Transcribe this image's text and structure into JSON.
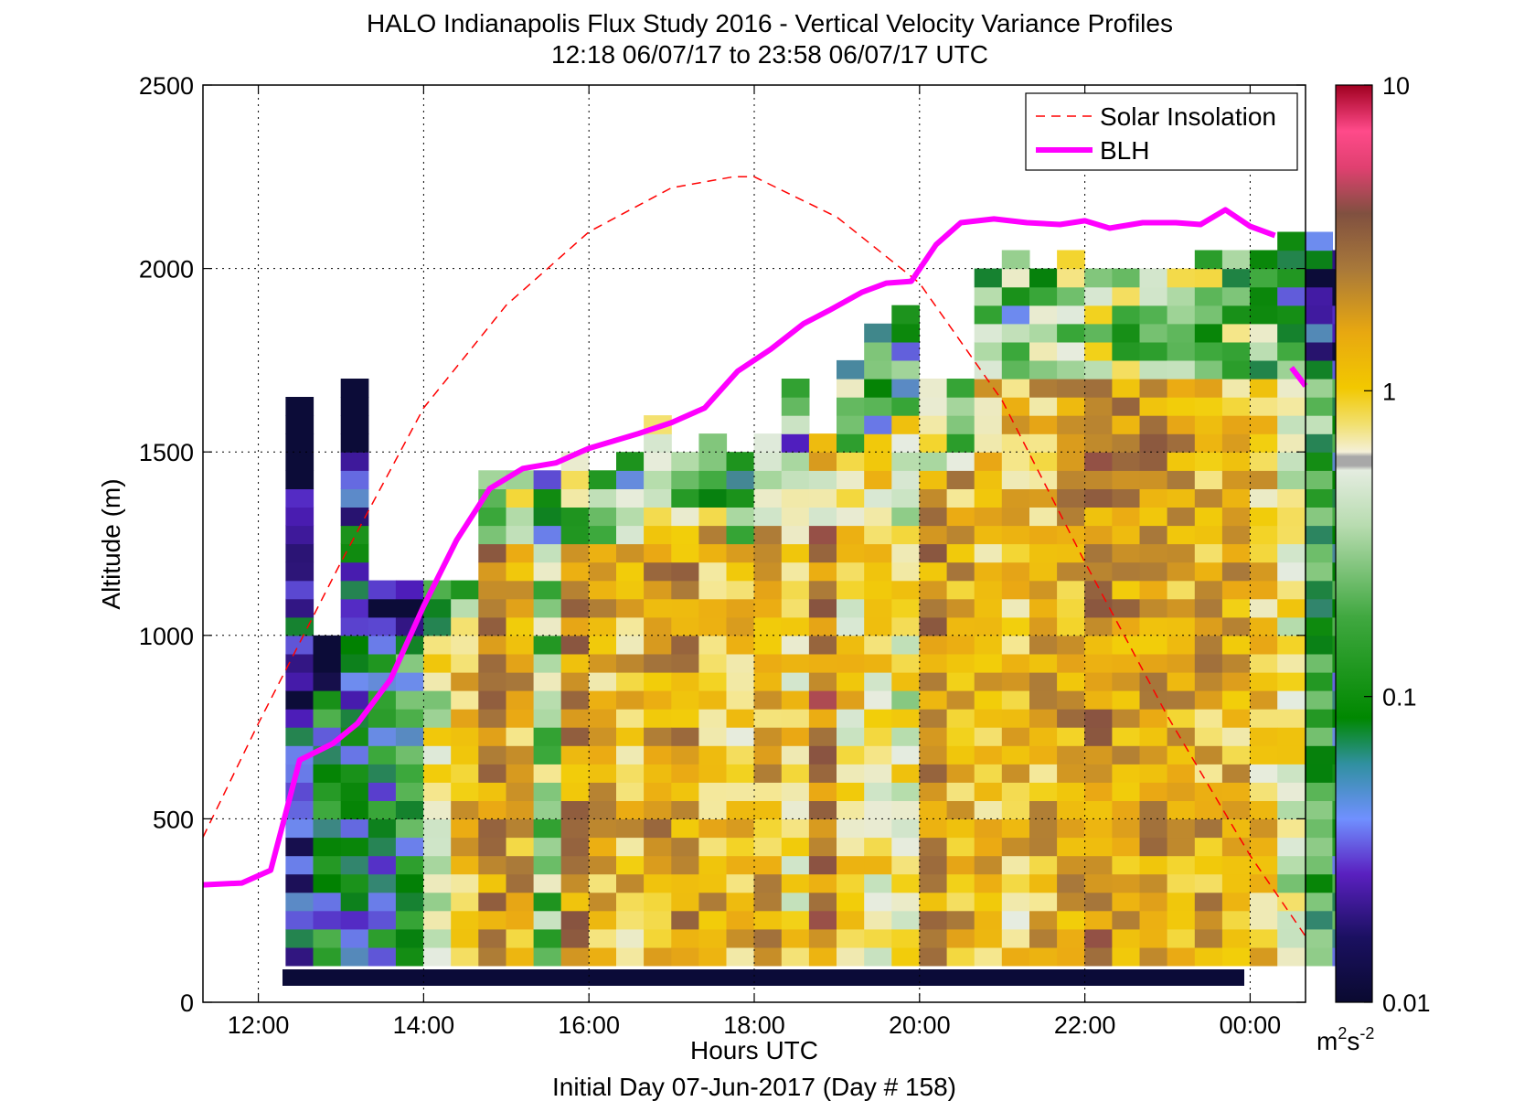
{
  "chart_data": {
    "type": "heatmap",
    "title": "HALO Indianapolis Flux Study 2016 - Vertical Velocity Variance Profiles",
    "subtitle": "12:18 06/07/17 to 23:58 06/07/17  UTC",
    "xlabel": "Hours UTC",
    "footer": "Initial Day 07-Jun-2017 (Day # 158)",
    "ylabel": "Altitude (m)",
    "xlim": [
      11.33,
      24.67
    ],
    "ylim": [
      0,
      2500
    ],
    "x_ticks": [
      12,
      14,
      16,
      18,
      20,
      22,
      24
    ],
    "x_tick_labels": [
      "12:00",
      "14:00",
      "16:00",
      "18:00",
      "20:00",
      "22:00",
      "00:00"
    ],
    "y_ticks": [
      0,
      500,
      1000,
      1500,
      2000,
      2500
    ],
    "y_tick_labels": [
      "0",
      "500",
      "1000",
      "1500",
      "2000",
      "2500"
    ],
    "grid": true,
    "legend_position": "top-right",
    "colorbar": {
      "scale": "log",
      "range": [
        0.01,
        10
      ],
      "tick_values": [
        0.01,
        0.1,
        1,
        10
      ],
      "tick_labels": [
        "0.01",
        "0.1",
        "1",
        "10"
      ],
      "unit_base": "m",
      "unit_sup1": "2",
      "unit_mid": "s",
      "unit_sup2": "-2"
    },
    "cells": {
      "time_start": 12.33,
      "time_step": 0.3333,
      "alt_step": 50,
      "columns": [
        {
          "top": 1650,
          "level": 0.12
        },
        {
          "top": 1000,
          "level": 0.25
        },
        {
          "top": 1700,
          "level": 0.18
        },
        {
          "top": 1150,
          "level": 0.22
        },
        {
          "top": 1150,
          "level": 0.3
        },
        {
          "top": 1150,
          "level": 0.55
        },
        {
          "top": 1150,
          "level": 0.68
        },
        {
          "top": 1450,
          "level": 0.8
        },
        {
          "top": 1450,
          "level": 0.72
        },
        {
          "top": 1450,
          "level": 0.45
        },
        {
          "top": 1500,
          "level": 0.78
        },
        {
          "top": 1450,
          "level": 0.7
        },
        {
          "top": 1500,
          "level": 0.68
        },
        {
          "top": 1600,
          "level": 0.74
        },
        {
          "top": 1500,
          "level": 0.76
        },
        {
          "top": 1550,
          "level": 0.7
        },
        {
          "top": 1500,
          "level": 0.66
        },
        {
          "top": 1550,
          "level": 0.72
        },
        {
          "top": 1700,
          "level": 0.6
        },
        {
          "top": 1550,
          "level": 0.84
        },
        {
          "top": 1750,
          "level": 0.62
        },
        {
          "top": 1850,
          "level": 0.58
        },
        {
          "top": 1900,
          "level": 0.55
        },
        {
          "top": 1700,
          "level": 0.78
        },
        {
          "top": 1700,
          "level": 0.72
        },
        {
          "top": 2000,
          "level": 0.68
        },
        {
          "top": 2050,
          "level": 0.66
        },
        {
          "top": 2000,
          "level": 0.7
        },
        {
          "top": 2050,
          "level": 0.74
        },
        {
          "top": 2000,
          "level": 0.8
        },
        {
          "top": 2000,
          "level": 0.76
        },
        {
          "top": 2000,
          "level": 0.78
        },
        {
          "top": 2000,
          "level": 0.74
        },
        {
          "top": 2050,
          "level": 0.72
        },
        {
          "top": 2050,
          "level": 0.7
        },
        {
          "top": 2050,
          "level": 0.66
        },
        {
          "top": 2100,
          "level": 0.54
        },
        {
          "top": 2100,
          "level": 0.36
        },
        {
          "top": 2050,
          "level": 0.28
        }
      ]
    },
    "series": [
      {
        "name": "Solar Insolation",
        "style": "dashed",
        "color": "#ff0000",
        "x": [
          11.33,
          12,
          13,
          14,
          15,
          16,
          17,
          17.75,
          18,
          19,
          20,
          21,
          22,
          23,
          24,
          24.67
        ],
        "y": [
          450,
          760,
          1200,
          1620,
          1900,
          2100,
          2220,
          2250,
          2250,
          2140,
          1960,
          1640,
          1200,
          780,
          400,
          180
        ]
      },
      {
        "name": "BLH",
        "style": "solid",
        "color": "#ff00ff",
        "x": [
          11.33,
          11.8,
          12.15,
          12.5,
          12.9,
          13.2,
          13.6,
          14,
          14.4,
          14.8,
          15.2,
          15.6,
          16,
          16.6,
          17,
          17.4,
          17.8,
          18.2,
          18.6,
          18.9,
          19.3,
          19.6,
          19.9,
          20.2,
          20.5,
          20.9,
          21.3,
          21.7,
          22,
          22.3,
          22.7,
          23.1,
          23.4,
          23.7,
          24,
          24.3
        ],
        "y": [
          320,
          325,
          360,
          660,
          705,
          760,
          880,
          1080,
          1260,
          1400,
          1455,
          1470,
          1510,
          1550,
          1580,
          1620,
          1720,
          1780,
          1850,
          1885,
          1935,
          1960,
          1965,
          2065,
          2125,
          2135,
          2125,
          2120,
          2130,
          2110,
          2125,
          2125,
          2120,
          2160,
          2115,
          2090
        ]
      },
      {
        "name": "BLH-tail",
        "style": "solid",
        "color": "#ff00ff",
        "x": [
          24.5,
          24.67
        ],
        "y": [
          1730,
          1680
        ]
      }
    ]
  }
}
